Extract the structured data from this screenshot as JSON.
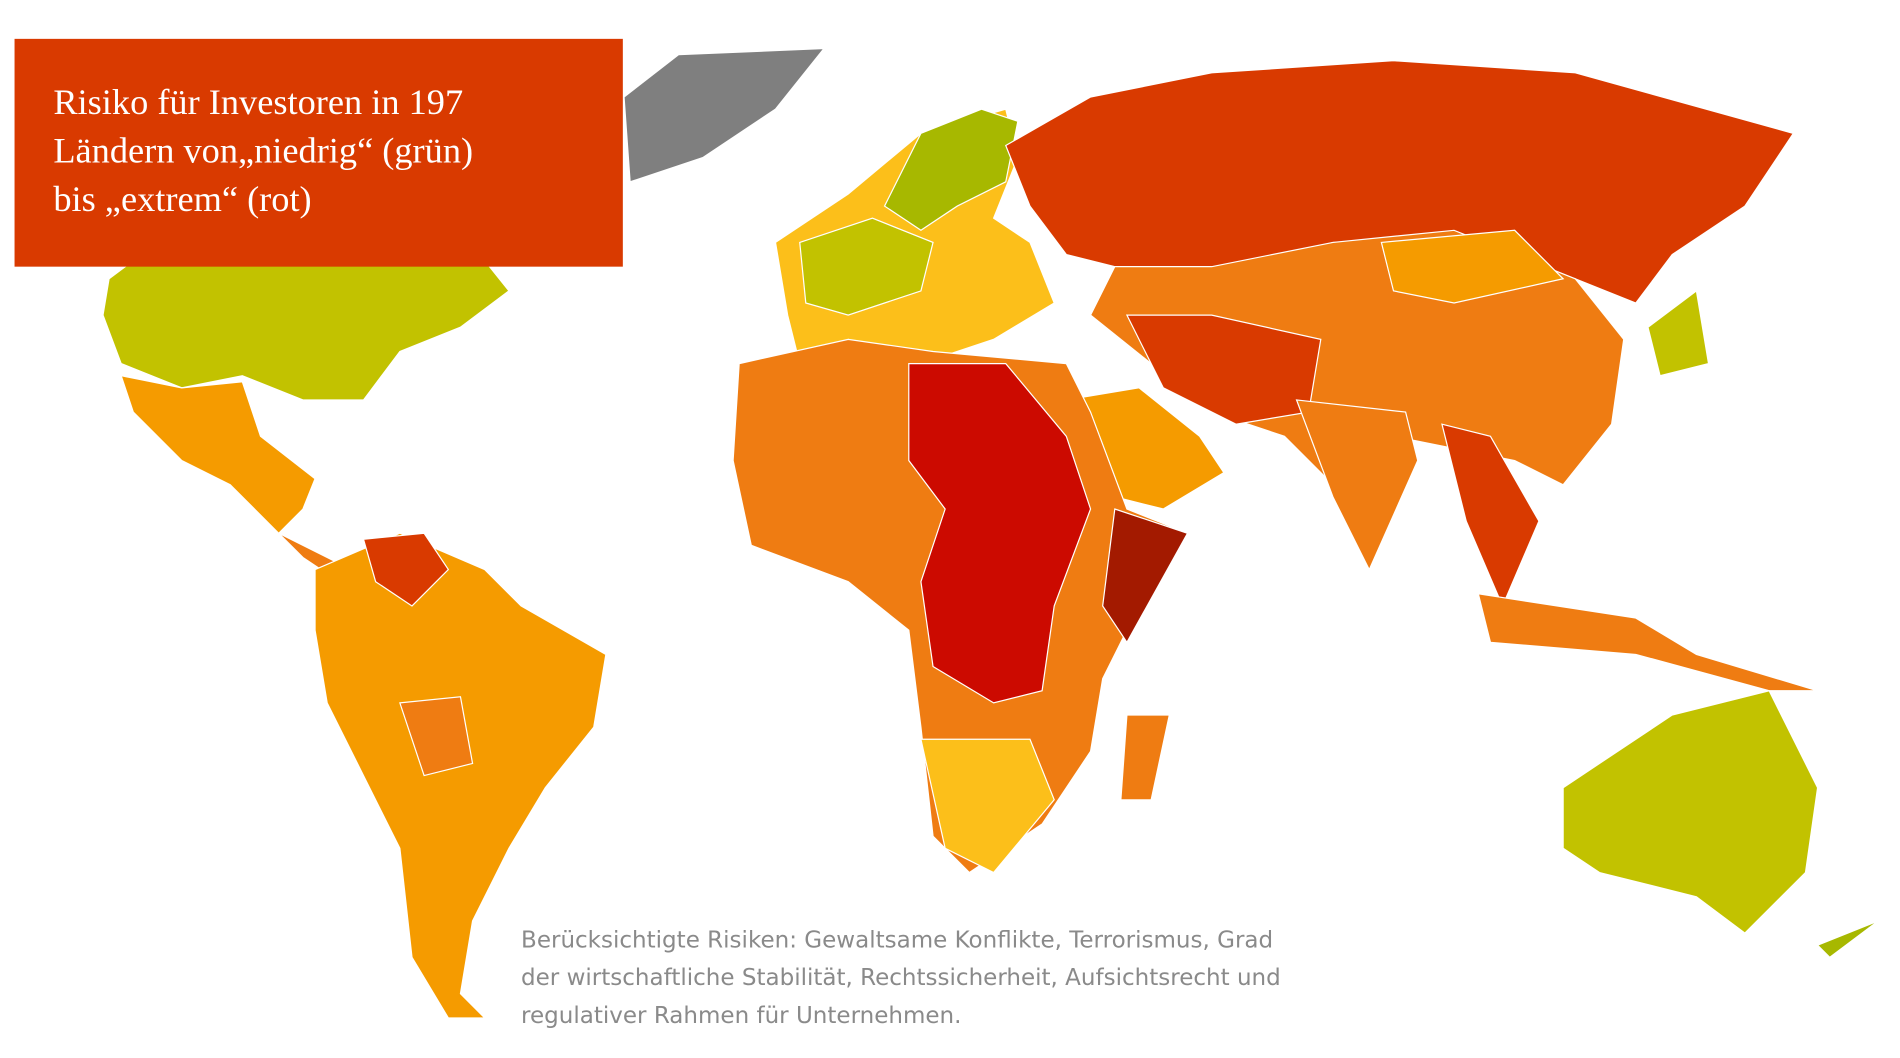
{
  "title": {
    "lines": [
      "Risiko für Investoren in 197",
      "Ländern von„niedrig“ (grün)",
      "bis „extrem“ (rot)"
    ]
  },
  "footnote": {
    "lines": [
      "Berücksichtigte Risiken: Gewaltsame Konflikte, Terrorismus, Grad",
      "der wirtschaftliche Stabilität, Rechtssicherheit, Aufsichtsrecht und",
      "regulativer Rahmen für Unternehmen."
    ]
  }
}
